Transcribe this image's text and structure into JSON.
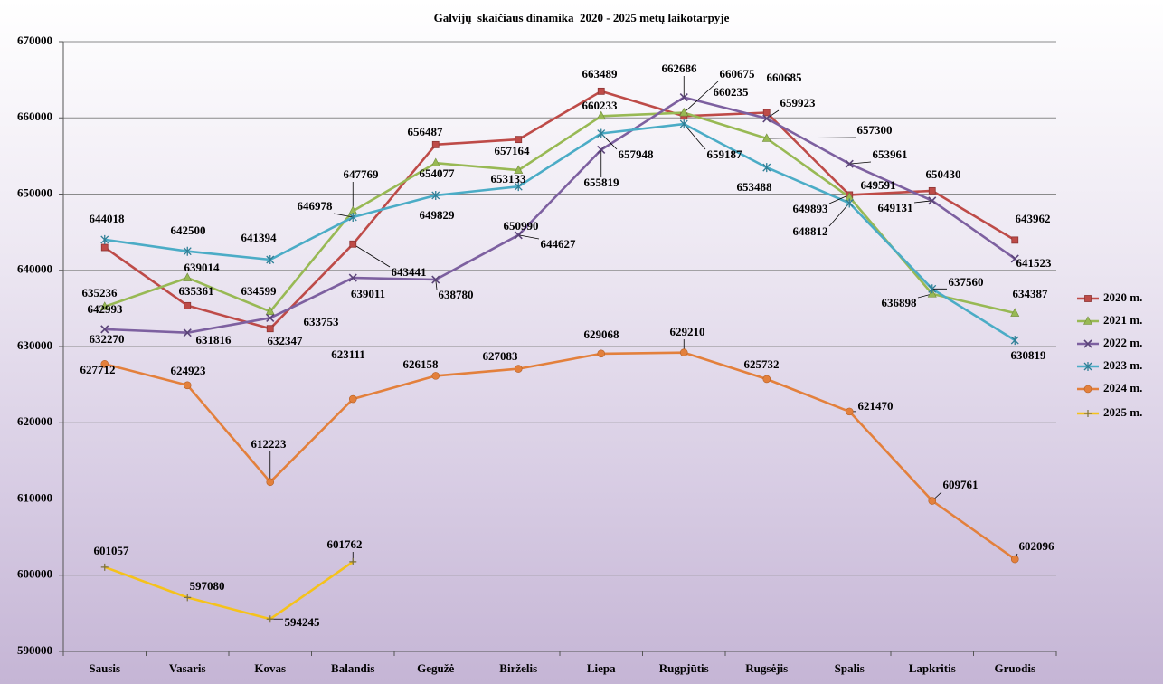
{
  "chart_data": {
    "type": "line",
    "title": "Galvijų  skaičiaus dinamika  2020 - 2025 metų laikotarpyje",
    "xlabel": "",
    "ylabel": "",
    "categories": [
      "Sausis",
      "Vasaris",
      "Kovas",
      "Balandis",
      "Gegužė",
      "Birželis",
      "Liepa",
      "Rugpjūtis",
      "Rugsėjis",
      "Spalis",
      "Lapkritis",
      "Gruodis"
    ],
    "ylim": [
      590000,
      670000
    ],
    "yticks": [
      670000,
      660000,
      650000,
      640000,
      630000,
      620000,
      610000,
      600000,
      590000
    ],
    "grid": true,
    "legend_position": "right",
    "series": [
      {
        "name": "2020 m.",
        "color": "#BE4B48",
        "marker": "square",
        "values": [
          642993,
          635361,
          632347,
          643441,
          656487,
          657164,
          663489,
          660235,
          660685,
          649893,
          650430,
          643962
        ]
      },
      {
        "name": "2021 m.",
        "color": "#98B954",
        "marker": "triangle",
        "values": [
          635236,
          639014,
          634599,
          647769,
          654077,
          653133,
          660233,
          660675,
          657300,
          649591,
          636898,
          634387
        ]
      },
      {
        "name": "2022 m.",
        "color": "#7D60A0",
        "marker": "x",
        "values": [
          632270,
          631816,
          633753,
          639011,
          638780,
          644627,
          655819,
          662686,
          659923,
          653961,
          649131,
          641523
        ]
      },
      {
        "name": "2023 m.",
        "color": "#4BACC6",
        "marker": "star",
        "values": [
          644018,
          642500,
          641394,
          646978,
          649829,
          650990,
          657948,
          659187,
          653488,
          648812,
          637560,
          630819
        ]
      },
      {
        "name": "2024 m.",
        "color": "#E3803C",
        "marker": "circle",
        "values": [
          627712,
          624923,
          612223,
          623111,
          626158,
          627083,
          629068,
          629210,
          625732,
          621470,
          609761,
          602096
        ]
      },
      {
        "name": "2025 m.",
        "color": "#F5C21B",
        "marker": "plus",
        "values": [
          601057,
          597080,
          594245,
          601762,
          null,
          null,
          null,
          null,
          null,
          null,
          null,
          null
        ]
      }
    ]
  }
}
